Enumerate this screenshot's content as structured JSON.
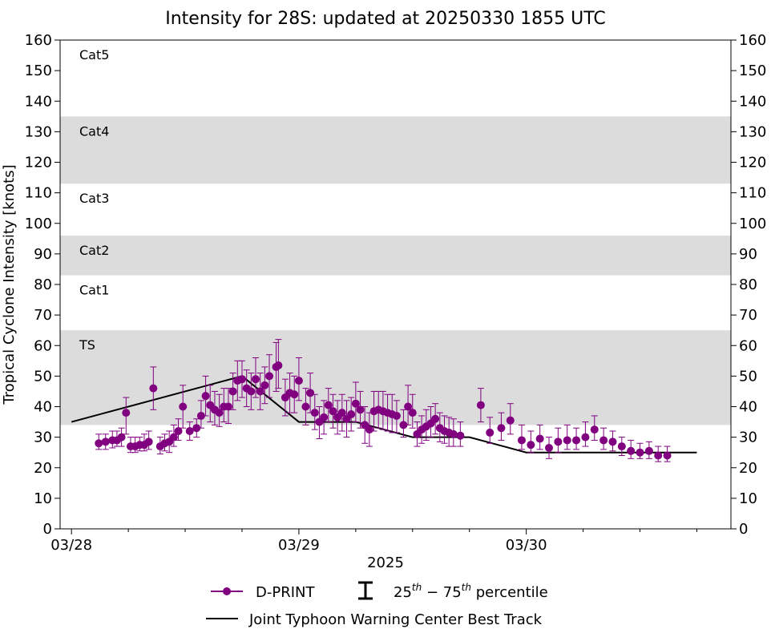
{
  "chart_data": {
    "type": "scatter",
    "title": "Intensity for 28S: updated at 20250330 1855 UTC",
    "xlabel": "2025",
    "ylabel": "Tropical Cyclone Intensity [knots]",
    "ylim": [
      0,
      160
    ],
    "yticks": [
      0,
      10,
      20,
      30,
      40,
      50,
      60,
      70,
      80,
      90,
      100,
      110,
      120,
      130,
      140,
      150,
      160
    ],
    "x_unit": "days since 03/28 00 UTC",
    "xlim": [
      -0.05,
      2.9
    ],
    "xticks": [
      {
        "value": 0,
        "label": "03/28"
      },
      {
        "value": 1,
        "label": "03/29"
      },
      {
        "value": 2,
        "label": "03/30"
      }
    ],
    "x_minor_ticks": [
      0.25,
      0.5,
      0.75,
      1.25,
      1.5,
      1.75,
      2.25,
      2.5,
      2.75
    ],
    "grid": false,
    "category_bands": [
      {
        "label": "TS",
        "min": 34,
        "max": 65,
        "shaded": true
      },
      {
        "label": "Cat1",
        "min": 65,
        "max": 83,
        "shaded": false
      },
      {
        "label": "Cat2",
        "min": 83,
        "max": 96,
        "shaded": true
      },
      {
        "label": "Cat3",
        "min": 96,
        "max": 113,
        "shaded": false
      },
      {
        "label": "Cat4",
        "min": 113,
        "max": 135,
        "shaded": true
      },
      {
        "label": "Cat5",
        "min": 135,
        "max": 160,
        "shaded": false
      }
    ],
    "band_color": "#dcdcdc",
    "series": [
      {
        "name": "D-PRINT",
        "color": "#800080",
        "points": [
          {
            "x": 0.12,
            "y": 28,
            "lo": 26,
            "hi": 31
          },
          {
            "x": 0.15,
            "y": 28.5,
            "lo": 26,
            "hi": 31
          },
          {
            "x": 0.18,
            "y": 29,
            "lo": 26.5,
            "hi": 32
          },
          {
            "x": 0.2,
            "y": 29,
            "lo": 27,
            "hi": 32
          },
          {
            "x": 0.22,
            "y": 30,
            "lo": 27,
            "hi": 33
          },
          {
            "x": 0.24,
            "y": 38,
            "lo": 31,
            "hi": 43
          },
          {
            "x": 0.26,
            "y": 27,
            "lo": 25,
            "hi": 30
          },
          {
            "x": 0.28,
            "y": 27,
            "lo": 25,
            "hi": 30
          },
          {
            "x": 0.3,
            "y": 27.5,
            "lo": 25.5,
            "hi": 30
          },
          {
            "x": 0.32,
            "y": 27.5,
            "lo": 25.5,
            "hi": 31
          },
          {
            "x": 0.34,
            "y": 28.5,
            "lo": 26,
            "hi": 32
          },
          {
            "x": 0.36,
            "y": 46,
            "lo": 39,
            "hi": 53
          },
          {
            "x": 0.39,
            "y": 27,
            "lo": 24.5,
            "hi": 30
          },
          {
            "x": 0.41,
            "y": 28,
            "lo": 25.5,
            "hi": 31
          },
          {
            "x": 0.43,
            "y": 28.5,
            "lo": 25,
            "hi": 32
          },
          {
            "x": 0.45,
            "y": 30,
            "lo": 27,
            "hi": 34
          },
          {
            "x": 0.47,
            "y": 32,
            "lo": 29,
            "hi": 36
          },
          {
            "x": 0.49,
            "y": 40,
            "lo": 33,
            "hi": 47
          },
          {
            "x": 0.52,
            "y": 32,
            "lo": 29,
            "hi": 35
          },
          {
            "x": 0.55,
            "y": 33,
            "lo": 30,
            "hi": 36
          },
          {
            "x": 0.57,
            "y": 37,
            "lo": 33,
            "hi": 42
          },
          {
            "x": 0.59,
            "y": 43.5,
            "lo": 37,
            "hi": 50
          },
          {
            "x": 0.61,
            "y": 40.5,
            "lo": 35,
            "hi": 47
          },
          {
            "x": 0.63,
            "y": 39,
            "lo": 34,
            "hi": 45
          },
          {
            "x": 0.65,
            "y": 38,
            "lo": 33.5,
            "hi": 44
          },
          {
            "x": 0.67,
            "y": 40,
            "lo": 35,
            "hi": 46
          },
          {
            "x": 0.69,
            "y": 40,
            "lo": 34.5,
            "hi": 46
          },
          {
            "x": 0.71,
            "y": 45,
            "lo": 39,
            "hi": 51
          },
          {
            "x": 0.73,
            "y": 48.5,
            "lo": 42,
            "hi": 55
          },
          {
            "x": 0.75,
            "y": 49,
            "lo": 43,
            "hi": 55
          },
          {
            "x": 0.77,
            "y": 46,
            "lo": 40,
            "hi": 52
          },
          {
            "x": 0.79,
            "y": 45,
            "lo": 39,
            "hi": 51
          },
          {
            "x": 0.81,
            "y": 49,
            "lo": 43,
            "hi": 56
          },
          {
            "x": 0.83,
            "y": 45,
            "lo": 39,
            "hi": 51
          },
          {
            "x": 0.85,
            "y": 47,
            "lo": 41,
            "hi": 53
          },
          {
            "x": 0.87,
            "y": 50,
            "lo": 43,
            "hi": 57
          },
          {
            "x": 0.9,
            "y": 53,
            "lo": 45,
            "hi": 61
          },
          {
            "x": 0.91,
            "y": 53.5,
            "lo": 46,
            "hi": 62
          },
          {
            "x": 0.94,
            "y": 43,
            "lo": 37,
            "hi": 49
          },
          {
            "x": 0.96,
            "y": 44.5,
            "lo": 38,
            "hi": 51
          },
          {
            "x": 0.98,
            "y": 44,
            "lo": 38,
            "hi": 50
          },
          {
            "x": 1.0,
            "y": 48.5,
            "lo": 42,
            "hi": 56
          },
          {
            "x": 1.03,
            "y": 40,
            "lo": 34,
            "hi": 46
          },
          {
            "x": 1.05,
            "y": 44.5,
            "lo": 38,
            "hi": 51
          },
          {
            "x": 1.07,
            "y": 38,
            "lo": 32.5,
            "hi": 44
          },
          {
            "x": 1.09,
            "y": 35,
            "lo": 29.5,
            "hi": 40
          },
          {
            "x": 1.11,
            "y": 36.5,
            "lo": 31,
            "hi": 42
          },
          {
            "x": 1.13,
            "y": 40.5,
            "lo": 35,
            "hi": 46
          },
          {
            "x": 1.15,
            "y": 38.5,
            "lo": 33,
            "hi": 44
          },
          {
            "x": 1.17,
            "y": 36.5,
            "lo": 31,
            "hi": 42
          },
          {
            "x": 1.19,
            "y": 38,
            "lo": 32,
            "hi": 44
          },
          {
            "x": 1.21,
            "y": 36,
            "lo": 30,
            "hi": 42
          },
          {
            "x": 1.23,
            "y": 37.5,
            "lo": 32,
            "hi": 43
          },
          {
            "x": 1.25,
            "y": 41,
            "lo": 35,
            "hi": 48
          },
          {
            "x": 1.27,
            "y": 39,
            "lo": 33,
            "hi": 45
          },
          {
            "x": 1.29,
            "y": 34,
            "lo": 28,
            "hi": 40
          },
          {
            "x": 1.31,
            "y": 32.5,
            "lo": 27,
            "hi": 38
          },
          {
            "x": 1.33,
            "y": 38.5,
            "lo": 32,
            "hi": 45
          },
          {
            "x": 1.35,
            "y": 39,
            "lo": 33,
            "hi": 45
          },
          {
            "x": 1.37,
            "y": 38.5,
            "lo": 32.5,
            "hi": 45
          },
          {
            "x": 1.39,
            "y": 38,
            "lo": 32,
            "hi": 44
          },
          {
            "x": 1.41,
            "y": 37.5,
            "lo": 31.5,
            "hi": 44
          },
          {
            "x": 1.43,
            "y": 37,
            "lo": 31.5,
            "hi": 42
          },
          {
            "x": 1.46,
            "y": 34,
            "lo": 30,
            "hi": 39
          },
          {
            "x": 1.48,
            "y": 40,
            "lo": 34,
            "hi": 47
          },
          {
            "x": 1.5,
            "y": 38,
            "lo": 33,
            "hi": 44
          },
          {
            "x": 1.52,
            "y": 31,
            "lo": 27,
            "hi": 35
          },
          {
            "x": 1.54,
            "y": 32.5,
            "lo": 28,
            "hi": 37
          },
          {
            "x": 1.56,
            "y": 33.5,
            "lo": 29,
            "hi": 39
          },
          {
            "x": 1.58,
            "y": 34.5,
            "lo": 30,
            "hi": 40
          },
          {
            "x": 1.6,
            "y": 36,
            "lo": 31,
            "hi": 41
          },
          {
            "x": 1.62,
            "y": 33,
            "lo": 28.5,
            "hi": 38
          },
          {
            "x": 1.64,
            "y": 32,
            "lo": 28,
            "hi": 37
          },
          {
            "x": 1.66,
            "y": 31.5,
            "lo": 27,
            "hi": 36.5
          },
          {
            "x": 1.68,
            "y": 31,
            "lo": 27,
            "hi": 36
          },
          {
            "x": 1.71,
            "y": 30.5,
            "lo": 27,
            "hi": 35
          },
          {
            "x": 1.8,
            "y": 40.5,
            "lo": 35,
            "hi": 46
          },
          {
            "x": 1.84,
            "y": 31.5,
            "lo": 28,
            "hi": 36.5
          },
          {
            "x": 1.89,
            "y": 33,
            "lo": 29,
            "hi": 38
          },
          {
            "x": 1.93,
            "y": 35.5,
            "lo": 31,
            "hi": 41
          },
          {
            "x": 1.98,
            "y": 29,
            "lo": 26,
            "hi": 34
          },
          {
            "x": 2.02,
            "y": 27.5,
            "lo": 25,
            "hi": 32
          },
          {
            "x": 2.06,
            "y": 29.5,
            "lo": 26,
            "hi": 34
          },
          {
            "x": 2.1,
            "y": 26.5,
            "lo": 23,
            "hi": 30
          },
          {
            "x": 2.14,
            "y": 28.5,
            "lo": 25,
            "hi": 33
          },
          {
            "x": 2.18,
            "y": 29,
            "lo": 26,
            "hi": 34
          },
          {
            "x": 2.22,
            "y": 29,
            "lo": 26,
            "hi": 33
          },
          {
            "x": 2.26,
            "y": 30,
            "lo": 27,
            "hi": 35
          },
          {
            "x": 2.3,
            "y": 32.5,
            "lo": 29,
            "hi": 37
          },
          {
            "x": 2.34,
            "y": 29,
            "lo": 26,
            "hi": 33
          },
          {
            "x": 2.38,
            "y": 28.5,
            "lo": 25.5,
            "hi": 32
          },
          {
            "x": 2.42,
            "y": 27,
            "lo": 24,
            "hi": 30
          },
          {
            "x": 2.46,
            "y": 25.5,
            "lo": 23,
            "hi": 29
          },
          {
            "x": 2.5,
            "y": 25,
            "lo": 23,
            "hi": 28
          },
          {
            "x": 2.54,
            "y": 25.5,
            "lo": 23,
            "hi": 28.5
          },
          {
            "x": 2.58,
            "y": 24,
            "lo": 22,
            "hi": 27
          },
          {
            "x": 2.62,
            "y": 24,
            "lo": 22,
            "hi": 27
          }
        ]
      },
      {
        "name": "Joint Typhoon Warning Center Best Track",
        "color": "#000000",
        "points": [
          {
            "x": 0.0,
            "y": 35
          },
          {
            "x": 0.75,
            "y": 50
          },
          {
            "x": 1.0,
            "y": 35
          },
          {
            "x": 1.25,
            "y": 35
          },
          {
            "x": 1.5,
            "y": 30
          },
          {
            "x": 1.75,
            "y": 30
          },
          {
            "x": 2.0,
            "y": 25
          },
          {
            "x": 2.5,
            "y": 25
          },
          {
            "x": 2.75,
            "y": 25
          }
        ]
      }
    ],
    "legend": {
      "placement": "bottom-center",
      "entries": [
        {
          "kind": "marker-line",
          "label": "D-PRINT",
          "color": "#800080"
        },
        {
          "kind": "errorbar",
          "label": "25th − 75th percentile",
          "color": "#000000"
        },
        {
          "kind": "line",
          "label": "Joint Typhoon Warning Center Best Track",
          "color": "#000000"
        }
      ]
    }
  }
}
